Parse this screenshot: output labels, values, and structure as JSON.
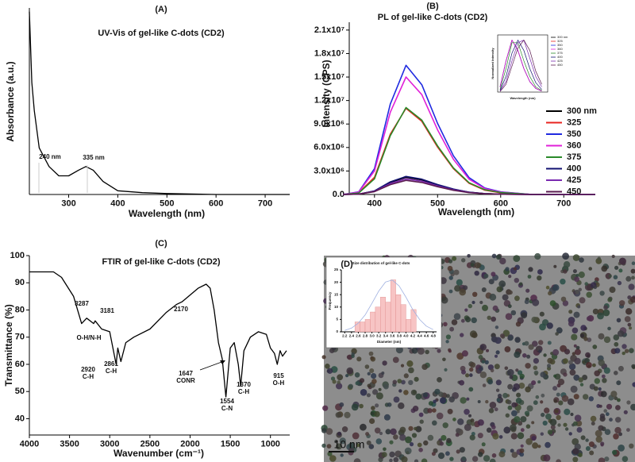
{
  "chart_data": [
    {
      "type": "line",
      "label": "(A)",
      "title": "UV-Vis of gel-like C-dots (CD2)",
      "x_label": "Wavelength (nm)",
      "y_label": "Absorbance (a.u.)",
      "x": [
        220,
        225,
        230,
        240,
        260,
        280,
        300,
        320,
        335,
        350,
        370,
        400,
        450,
        500,
        600,
        750
      ],
      "values": [
        0.98,
        0.6,
        0.45,
        0.25,
        0.15,
        0.1,
        0.1,
        0.13,
        0.15,
        0.13,
        0.07,
        0.02,
        0.01,
        0.005,
        0,
        0
      ],
      "color": "#000000",
      "xlim": [
        220,
        750
      ],
      "ylim": [
        0,
        1
      ],
      "xticks": [
        300,
        400,
        500,
        600,
        700
      ],
      "annotations": [
        "240 nm",
        "335 nm"
      ]
    },
    {
      "type": "line",
      "label": "(B)",
      "title": "PL of gel-like C-dots (CD2)",
      "x_label": "Wavelength (nm)",
      "y_label": "Intensity (CPS)",
      "x": [
        350,
        375,
        400,
        425,
        450,
        475,
        500,
        525,
        550,
        575,
        600,
        650,
        700,
        750
      ],
      "xlim": [
        360,
        750
      ],
      "ylim": [
        0,
        22000000
      ],
      "xticks": [
        400,
        500,
        600,
        700
      ],
      "yticks": [
        {
          "value": 0,
          "label": "0.0"
        },
        {
          "value": 3000000,
          "label": "3.0x10⁶"
        },
        {
          "value": 6000000,
          "label": "6.0x10⁶"
        },
        {
          "value": 9000000,
          "label": "9.0x10⁶"
        },
        {
          "value": 12000000,
          "label": "1.2x10⁷"
        },
        {
          "value": 15000000,
          "label": "1.5x10⁷"
        },
        {
          "value": 18000000,
          "label": "1.8x10⁷"
        },
        {
          "value": 21000000,
          "label": "2.1x10⁷"
        }
      ],
      "series": [
        {
          "name": "300 nm",
          "color": "#000000",
          "values": [
            0,
            44000,
            440000,
            1540000,
            2200000,
            1870000,
            1210000,
            660000,
            286000,
            110000,
            44000,
            0,
            0,
            0
          ]
        },
        {
          "name": "325",
          "color": "#e8231f",
          "values": [
            0,
            220000,
            2200000,
            7700000,
            11000000,
            9350000,
            6050000,
            3300000,
            1430000,
            550000,
            220000,
            0,
            0,
            0
          ]
        },
        {
          "name": "350",
          "color": "#1f2ae0",
          "values": [
            0,
            330000,
            3300000,
            11550000,
            16500000,
            14025000,
            9075000,
            4950000,
            2145000,
            825000,
            330000,
            0,
            0,
            0
          ]
        },
        {
          "name": "360",
          "color": "#e020d8",
          "values": [
            0,
            300000,
            3000000,
            10500000,
            15000000,
            12750000,
            8250000,
            4500000,
            1950000,
            750000,
            300000,
            0,
            0,
            0
          ]
        },
        {
          "name": "375",
          "color": "#2a8a2a",
          "values": [
            0,
            180000,
            2000000,
            7500000,
            11100000,
            9500000,
            6200000,
            3400000,
            1500000,
            600000,
            250000,
            0,
            0,
            0
          ]
        },
        {
          "name": "400",
          "color": "#101070",
          "values": [
            0,
            46000,
            460000,
            1610000,
            2300000,
            1955000,
            1265000,
            690000,
            299000,
            115000,
            46000,
            0,
            0,
            0
          ]
        },
        {
          "name": "425",
          "color": "#7a2ab0",
          "values": [
            0,
            40000,
            400000,
            1400000,
            2000000,
            1700000,
            1100000,
            600000,
            260000,
            100000,
            40000,
            0,
            0,
            0
          ]
        },
        {
          "name": "450",
          "color": "#5a1a50",
          "values": [
            0,
            36000,
            360000,
            1260000,
            1800000,
            1530000,
            990000,
            540000,
            234000,
            90000,
            36000,
            0,
            0,
            0
          ]
        }
      ]
    },
    {
      "type": "line",
      "x_label": "Wavelength (nm)",
      "y_label": "Normalized Intensity",
      "x": [
        400,
        425,
        450,
        475,
        500,
        525,
        550,
        575
      ],
      "xlim": [
        390,
        600
      ],
      "ylim": [
        0,
        1.1
      ],
      "series": [
        {
          "name": "300 nm",
          "color": "#000000",
          "values": [
            0.1,
            0.6,
            1,
            0.8,
            0.45,
            0.2,
            0.07,
            0.02
          ]
        },
        {
          "name": "325",
          "color": "#e8231f",
          "values": [
            0.1,
            0.6,
            1,
            0.8,
            0.45,
            0.2,
            0.07,
            0.02
          ]
        },
        {
          "name": "350",
          "color": "#1f2ae0",
          "values": [
            0.1,
            0.6,
            1,
            0.8,
            0.45,
            0.2,
            0.07,
            0.02
          ]
        },
        {
          "name": "360",
          "color": "#e020d8",
          "values": [
            0.1,
            0.6,
            1,
            0.8,
            0.45,
            0.2,
            0.07,
            0.02
          ]
        },
        {
          "name": "375",
          "color": "#2a8a2a",
          "values": [
            0.05,
            0.45,
            0.95,
            0.95,
            0.6,
            0.3,
            0.1,
            0.03
          ]
        },
        {
          "name": "400",
          "color": "#101070",
          "values": [
            0.03,
            0.3,
            0.75,
            1,
            0.8,
            0.45,
            0.18,
            0.05
          ]
        },
        {
          "name": "425",
          "color": "#7a2ab0",
          "values": [
            0.02,
            0.2,
            0.6,
            0.95,
            1,
            0.65,
            0.3,
            0.1
          ]
        },
        {
          "name": "450",
          "color": "#5a1a50",
          "values": [
            0.01,
            0.15,
            0.5,
            0.85,
            1,
            0.8,
            0.4,
            0.15
          ]
        }
      ]
    },
    {
      "type": "line",
      "label": "(C)",
      "title": "FTIR of gel-like C-dots (CD2)",
      "x_label": "Wavenumber (cm⁻¹)",
      "y_label": "Transmittance (%)",
      "x": [
        4000,
        3700,
        3600,
        3450,
        3350,
        3287,
        3200,
        3181,
        3100,
        3000,
        2920,
        2900,
        2861,
        2800,
        2700,
        2500,
        2300,
        2170,
        2100,
        1900,
        1800,
        1750,
        1700,
        1647,
        1600,
        1554,
        1500,
        1450,
        1400,
        1370,
        1330,
        1250,
        1150,
        1050,
        1000,
        950,
        915,
        880,
        850,
        800
      ],
      "values": [
        94,
        94,
        92,
        85,
        75,
        77,
        75,
        76,
        73,
        72,
        60,
        66,
        61,
        68,
        70,
        73,
        79,
        82,
        83,
        88,
        89.5,
        88,
        80,
        68,
        62,
        48,
        66,
        68,
        60,
        52,
        65,
        70,
        72,
        71,
        66,
        64,
        60,
        65,
        63,
        65
      ],
      "color": "#000000",
      "xlim": [
        4000,
        760
      ],
      "ylim": [
        34,
        100
      ],
      "xticks": [
        4000,
        3500,
        3000,
        2500,
        2000,
        1500,
        1000
      ],
      "yticks": [
        40,
        50,
        60,
        70,
        80,
        90,
        100
      ],
      "annotations": [
        "3287",
        "3181",
        "O-H/N-H",
        "2920",
        "C-H",
        "2861",
        "C-H",
        "2170",
        "1647",
        "CONR",
        "1554",
        "C-N",
        "1370",
        "C-H",
        "915",
        "O-H"
      ]
    },
    {
      "type": "histogram",
      "label": "(D)",
      "scale_bar": "10 nm",
      "title": "Size distribution of gel-like C-dots",
      "x_label": "Diameter (nm)",
      "y_label": "Frequency",
      "bins": [
        2.5,
        2.65,
        2.8,
        2.95,
        3.1,
        3.25,
        3.4,
        3.55,
        3.7,
        3.85,
        4.0,
        4.15,
        4.3
      ],
      "counts": [
        4,
        4,
        5,
        8,
        10,
        14,
        12,
        21,
        15,
        11,
        5,
        9
      ],
      "color": "#f7c4c4",
      "xlim": [
        2.1,
        4.9
      ],
      "ylim": [
        0,
        25
      ],
      "xticks": [
        2.2,
        2.4,
        2.6,
        2.8,
        {
          "value": 3,
          "label": "3.0"
        },
        3.2,
        3.4,
        3.6,
        3.8,
        {
          "value": 4,
          "label": "4.0"
        },
        4.2,
        4.4,
        4.6,
        4.8
      ],
      "yticks": [
        0,
        5,
        10,
        15,
        20,
        25
      ],
      "fit": {
        "x": [
          2.2,
          2.4,
          2.6,
          2.8,
          3.0,
          3.2,
          3.4,
          3.6,
          3.8,
          4.0,
          4.2,
          4.4,
          4.6,
          4.8
        ],
        "values": [
          0.55,
          1.5,
          3.5,
          6.8,
          11.5,
          16.4,
          20.1,
          20.9,
          18.5,
          14,
          9,
          5,
          2.3,
          0.9
        ],
        "color": "#9fb0e0"
      }
    }
  ]
}
